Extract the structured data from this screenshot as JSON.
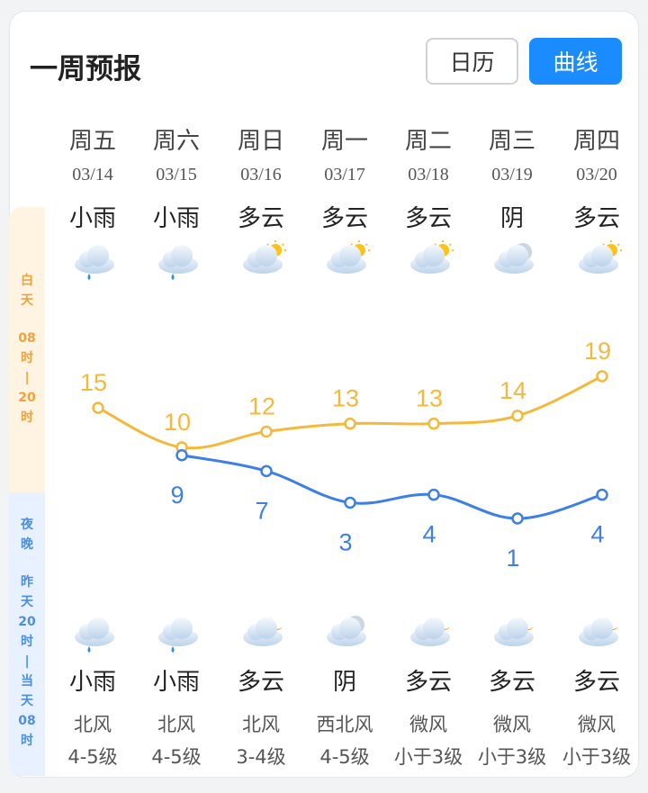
{
  "header": {
    "title": "一周预报",
    "calendar_label": "日历",
    "curve_label": "曲线"
  },
  "side": {
    "day_chars": [
      "白",
      "天",
      "",
      "08",
      "时",
      "|",
      "20",
      "时"
    ],
    "night_chars": [
      "夜",
      "晚",
      "",
      "昨",
      "天",
      "20",
      "时",
      "|",
      "当",
      "天",
      "08",
      "时"
    ]
  },
  "days": [
    {
      "weekday": "周五",
      "date": "03/14",
      "day_weather": "小雨",
      "day_icon": "rain-icon",
      "night_weather": "小雨",
      "night_icon": "rain-icon",
      "wind_dir": "北风",
      "wind_level": "4-5级"
    },
    {
      "weekday": "周六",
      "date": "03/15",
      "day_weather": "小雨",
      "day_icon": "rain-icon",
      "night_weather": "小雨",
      "night_icon": "rain-icon",
      "wind_dir": "北风",
      "wind_level": "4-5级"
    },
    {
      "weekday": "周日",
      "date": "03/16",
      "day_weather": "多云",
      "day_icon": "cloudy-sun-icon",
      "night_weather": "多云",
      "night_icon": "cloudy-moon-icon",
      "wind_dir": "北风",
      "wind_level": "3-4级"
    },
    {
      "weekday": "周一",
      "date": "03/17",
      "day_weather": "多云",
      "day_icon": "cloudy-sun-icon",
      "night_weather": "阴",
      "night_icon": "overcast-icon",
      "wind_dir": "西北风",
      "wind_level": "4-5级"
    },
    {
      "weekday": "周二",
      "date": "03/18",
      "day_weather": "多云",
      "day_icon": "cloudy-sun-icon",
      "night_weather": "多云",
      "night_icon": "cloudy-moon-icon",
      "wind_dir": "微风",
      "wind_level": "小于3级"
    },
    {
      "weekday": "周三",
      "date": "03/19",
      "day_weather": "阴",
      "day_icon": "overcast-icon",
      "night_weather": "多云",
      "night_icon": "cloudy-moon-icon",
      "wind_dir": "微风",
      "wind_level": "小于3级"
    },
    {
      "weekday": "周四",
      "date": "03/20",
      "day_weather": "多云",
      "day_icon": "cloudy-sun-icon",
      "night_weather": "多云",
      "night_icon": "cloudy-moon-icon",
      "wind_dir": "微风",
      "wind_level": "小于3级"
    }
  ],
  "chart_data": {
    "type": "line",
    "categories": [
      "03/14",
      "03/15",
      "03/16",
      "03/17",
      "03/18",
      "03/19",
      "03/20"
    ],
    "series": [
      {
        "values": [
          15,
          10,
          12,
          13,
          13,
          14,
          19
        ],
        "color": "#f4b93a"
      },
      {
        "values": [
          null,
          9,
          7,
          3,
          4,
          1,
          4
        ],
        "color": "#3d7fe6"
      }
    ],
    "ylim": [
      1,
      19
    ]
  }
}
